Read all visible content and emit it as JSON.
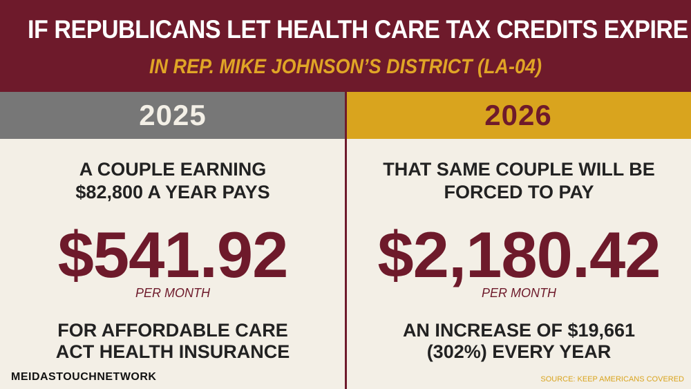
{
  "header": {
    "title": "IF REPUBLICANS LET HEALTH CARE TAX CREDITS EXPIRE",
    "subtitle": "IN REP. MIKE JOHNSON’S DISTRICT (LA-04)"
  },
  "left": {
    "year": "2025",
    "lead_line1": "A COUPLE EARNING",
    "lead_line2": "$82,800 A YEAR PAYS",
    "amount": "$541.92",
    "per": "PER MONTH",
    "tail_line1": "FOR AFFORDABLE CARE",
    "tail_line2": "ACT HEALTH INSURANCE"
  },
  "right": {
    "year": "2026",
    "lead_line1": "THAT SAME COUPLE WILL BE",
    "lead_line2": "FORCED TO PAY",
    "amount": "$2,180.42",
    "per": "PER MONTH",
    "tail_line1": "AN INCREASE OF $19,661",
    "tail_line2": "(302%) EVERY YEAR"
  },
  "footer": {
    "brand": "MEIDASTOUCHNETWORK",
    "source": "SOURCE: KEEP AMERICANS COVERED"
  },
  "colors": {
    "maroon": "#6e1a2b",
    "gold": "#d9a41e",
    "gray": "#777777",
    "paper": "#f3efe6"
  }
}
